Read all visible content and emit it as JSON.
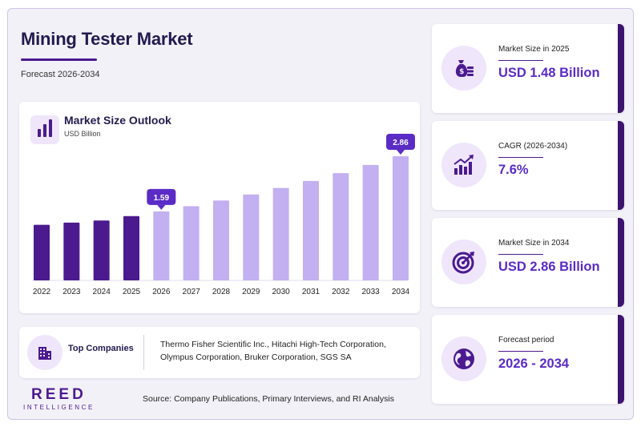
{
  "header": {
    "title": "Mining Tester Market",
    "subtitle": "Forecast 2026-2034"
  },
  "chart_card": {
    "title": "Market Size Outlook",
    "unit": "USD Billion",
    "icon": "bar-chart-icon"
  },
  "chart_data": {
    "type": "bar",
    "title": "Market Size Outlook",
    "ylabel": "USD Billion",
    "categories": [
      "2022",
      "2023",
      "2024",
      "2025",
      "2026",
      "2027",
      "2028",
      "2029",
      "2030",
      "2031",
      "2032",
      "2033",
      "2034"
    ],
    "values": [
      1.28,
      1.33,
      1.38,
      1.48,
      1.59,
      1.71,
      1.84,
      1.98,
      2.13,
      2.29,
      2.47,
      2.66,
      2.86
    ],
    "callouts": [
      {
        "category": "2026",
        "label": "1.59"
      },
      {
        "category": "2034",
        "label": "2.86"
      }
    ],
    "historical_color": "#4b1a8f",
    "forecast_color": "#c2b0f0",
    "ylim": [
      0,
      2.86
    ],
    "grid": false,
    "legend": "none"
  },
  "companies": {
    "label": "Top Companies",
    "text": "Thermo Fisher Scientific Inc., Hitachi High-Tech Corporation, Olympus Corporation, Bruker Corporation, SGS SA",
    "icon": "building-icon"
  },
  "logo": {
    "main": "REED",
    "sub": "INTELLIGENCE"
  },
  "source": "Source: Company Publications, Primary Interviews, and RI Analysis",
  "stats": [
    {
      "label": "Market Size in 2025",
      "value": "USD 1.48 Billion",
      "icon": "money-bag-icon"
    },
    {
      "label": "CAGR (2026-2034)",
      "value": "7.6%",
      "icon": "growth-chart-icon"
    },
    {
      "label": "Market Size in 2034",
      "value": "USD 2.86 Billion",
      "icon": "target-icon"
    },
    {
      "label": "Forecast period",
      "value": "2026 - 2034",
      "icon": "globe-icon"
    }
  ],
  "colors": {
    "accent": "#4b1a8f",
    "value_text": "#5b2bc6",
    "title_text": "#231a4f",
    "background": "#f3f1f8"
  }
}
